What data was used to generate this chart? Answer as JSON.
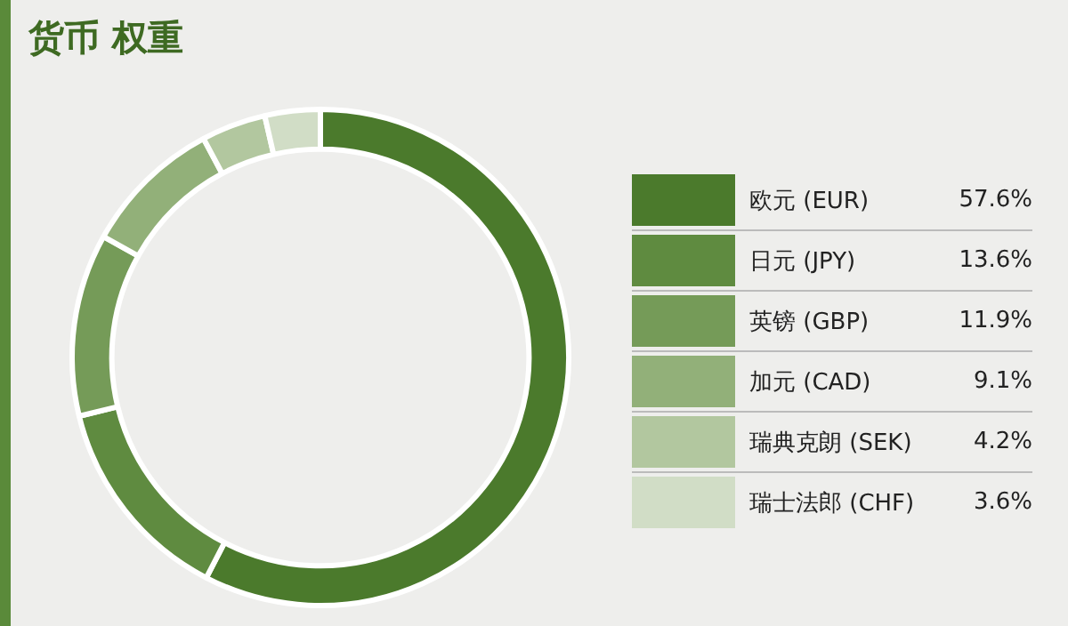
{
  "chart_data": {
    "type": "donut",
    "title": "货币 权重",
    "categories": [
      "欧元 (EUR)",
      "日元 (JPY)",
      "英镑 (GBP)",
      "加元 (CAD)",
      "瑞典克朗 (SEK)",
      "瑞士法郎 (CHF)"
    ],
    "values": [
      57.6,
      13.6,
      11.9,
      9.1,
      4.2,
      3.6
    ],
    "value_labels": [
      "57.6%",
      "13.6%",
      "11.9%",
      "9.1%",
      "4.2%",
      "3.6%"
    ],
    "colors": [
      "#4b7a2c",
      "#5f8b40",
      "#759b58",
      "#92b079",
      "#b2c79f",
      "#d1ddc6"
    ],
    "legend": "right"
  }
}
